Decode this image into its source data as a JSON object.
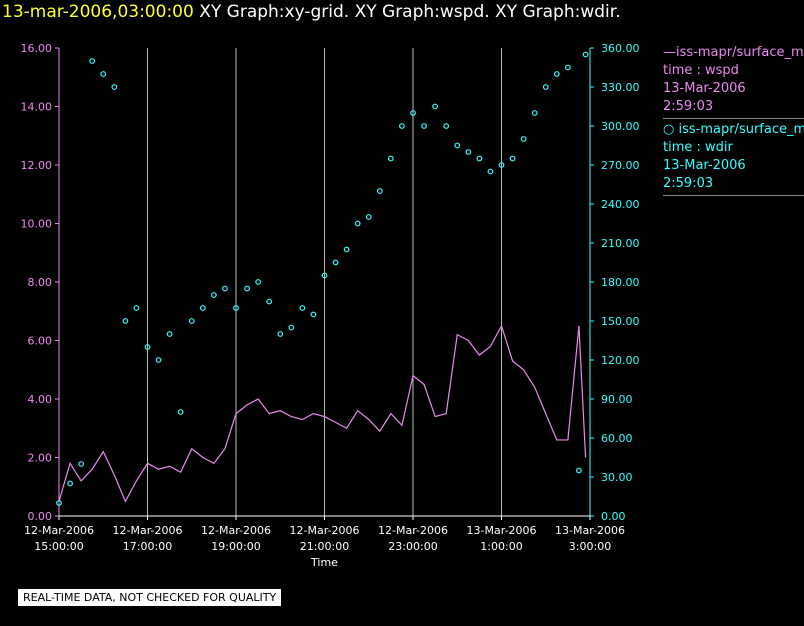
{
  "header": {
    "timestamp": "13-mar-2006,03:00:00",
    "titles": "XY Graph:xy-grid.  XY Graph:wspd.  XY Graph:wdir."
  },
  "legend": [
    {
      "name": "iss-mapr/surface_met",
      "symbol": "line",
      "time_label": "time : wspd",
      "date": "13-Mar-2006",
      "time": "2:59:03"
    },
    {
      "name": "iss-mapr/surface_met",
      "symbol": "circle",
      "time_label": "time : wdir",
      "date": "13-Mar-2006",
      "time": "2:59:03"
    }
  ],
  "note": "REAL-TIME DATA, NOT CHECKED FOR QUALITY",
  "colors": {
    "wspd": "#e98bed",
    "wdir": "#33ffff",
    "grid": "#bbbbbb"
  },
  "chart_data": {
    "type": "line+scatter",
    "xlabel": "Time",
    "x_unit": "hours since 12-Mar-2006 15:00",
    "xlim": [
      0,
      12
    ],
    "x_ticks": [
      {
        "x": 0,
        "date": "12-Mar-2006",
        "time": "15:00:00"
      },
      {
        "x": 2,
        "date": "12-Mar-2006",
        "time": "17:00:00"
      },
      {
        "x": 4,
        "date": "12-Mar-2006",
        "time": "19:00:00"
      },
      {
        "x": 6,
        "date": "12-Mar-2006",
        "time": "21:00:00"
      },
      {
        "x": 8,
        "date": "12-Mar-2006",
        "time": "23:00:00"
      },
      {
        "x": 10,
        "date": "13-Mar-2006",
        "time": "1:00:00"
      },
      {
        "x": 12,
        "date": "13-Mar-2006",
        "time": "3:00:00"
      }
    ],
    "left_axis": {
      "series": "wspd",
      "ylim": [
        0,
        16
      ],
      "ticks": [
        "0.00",
        "2.00",
        "4.00",
        "6.00",
        "8.00",
        "10.00",
        "12.00",
        "14.00",
        "16.00"
      ]
    },
    "right_axis": {
      "series": "wdir",
      "ylim": [
        0,
        360
      ],
      "ticks": [
        "0.00",
        "30.00",
        "60.00",
        "90.00",
        "120.00",
        "150.00",
        "180.00",
        "210.00",
        "240.00",
        "270.00",
        "300.00",
        "330.00",
        "360.00"
      ]
    },
    "series": [
      {
        "name": "wspd",
        "style": "line",
        "axis": "left",
        "x": [
          0.0,
          0.25,
          0.5,
          0.75,
          1.0,
          1.25,
          1.5,
          1.75,
          2.0,
          2.25,
          2.5,
          2.75,
          3.0,
          3.25,
          3.5,
          3.75,
          4.0,
          4.25,
          4.5,
          4.75,
          5.0,
          5.25,
          5.5,
          5.75,
          6.0,
          6.25,
          6.5,
          6.75,
          7.0,
          7.25,
          7.5,
          7.75,
          8.0,
          8.25,
          8.5,
          8.75,
          9.0,
          9.25,
          9.5,
          9.75,
          10.0,
          10.25,
          10.5,
          10.75,
          11.0,
          11.25,
          11.5,
          11.75,
          11.9
        ],
        "y": [
          0.5,
          1.8,
          1.2,
          1.6,
          2.2,
          1.4,
          0.5,
          1.2,
          1.8,
          1.6,
          1.7,
          1.5,
          2.3,
          2.0,
          1.8,
          2.3,
          3.5,
          3.8,
          4.0,
          3.5,
          3.6,
          3.4,
          3.3,
          3.5,
          3.4,
          3.2,
          3.0,
          3.6,
          3.3,
          2.9,
          3.5,
          3.1,
          4.8,
          4.5,
          3.4,
          3.5,
          6.2,
          6.0,
          5.5,
          5.8,
          6.5,
          5.3,
          5.0,
          4.4,
          3.5,
          2.6,
          2.6,
          6.5,
          2.0
        ]
      },
      {
        "name": "wdir",
        "style": "scatter",
        "axis": "right",
        "x": [
          0.0,
          0.25,
          0.5,
          0.75,
          1.0,
          1.25,
          1.5,
          1.75,
          2.0,
          2.25,
          2.5,
          2.75,
          3.0,
          3.25,
          3.5,
          3.75,
          4.0,
          4.25,
          4.5,
          4.75,
          5.0,
          5.25,
          5.5,
          5.75,
          6.0,
          6.25,
          6.5,
          6.75,
          7.0,
          7.25,
          7.5,
          7.75,
          8.0,
          8.25,
          8.5,
          8.75,
          9.0,
          9.25,
          9.5,
          9.75,
          10.0,
          10.25,
          10.5,
          10.75,
          11.0,
          11.25,
          11.5,
          11.75,
          11.9
        ],
        "y": [
          10,
          25,
          40,
          350,
          340,
          330,
          150,
          160,
          130,
          120,
          140,
          80,
          150,
          160,
          170,
          175,
          160,
          175,
          180,
          165,
          140,
          145,
          160,
          155,
          185,
          195,
          205,
          225,
          230,
          250,
          275,
          300,
          310,
          300,
          315,
          300,
          285,
          280,
          275,
          265,
          270,
          275,
          290,
          310,
          330,
          340,
          345,
          35,
          355
        ]
      }
    ]
  }
}
